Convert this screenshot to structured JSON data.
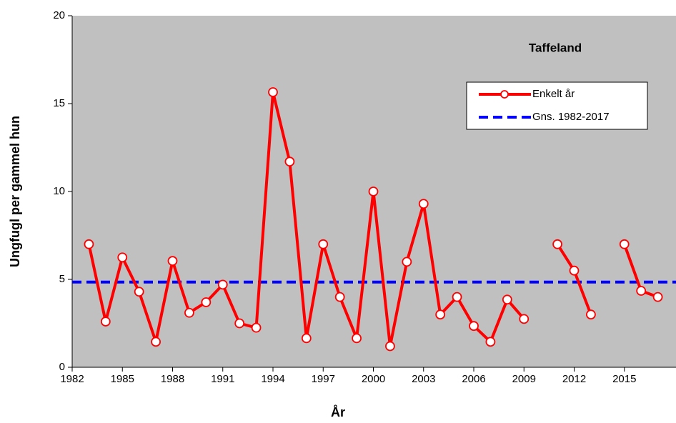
{
  "chart_data": {
    "type": "line",
    "title": "Taffeland",
    "x_label": "År",
    "y_label": "Ungfugl per gammel hun",
    "x": [
      1983,
      1984,
      1985,
      1986,
      1987,
      1988,
      1989,
      1990,
      1991,
      1992,
      1993,
      1994,
      1995,
      1996,
      1997,
      1998,
      1999,
      2000,
      2001,
      2002,
      2003,
      2004,
      2005,
      2006,
      2007,
      2008,
      2009,
      2010,
      2011,
      2012,
      2013,
      2014,
      2015,
      2016,
      2017
    ],
    "series": [
      {
        "name": "Enkelt år",
        "color": "#ff0000",
        "marker": "circle",
        "values": [
          7.0,
          2.6,
          6.25,
          4.3,
          1.45,
          6.05,
          3.1,
          3.7,
          4.7,
          2.5,
          2.25,
          15.65,
          11.7,
          1.65,
          7.0,
          4.0,
          1.65,
          10.0,
          1.2,
          6.0,
          9.3,
          3.0,
          4.0,
          2.35,
          1.45,
          3.85,
          2.75,
          null,
          7.0,
          5.5,
          3.0,
          null,
          7.0,
          4.35,
          4.0
        ]
      }
    ],
    "reference_line": {
      "name": "Gns. 1982-2017",
      "color": "#0000ff",
      "value": 4.85,
      "dashed": true
    },
    "xlim": [
      1982,
      2018
    ],
    "xticks": [
      1982,
      1985,
      1988,
      1991,
      1994,
      1997,
      2000,
      2003,
      2006,
      2009,
      2012,
      2015
    ],
    "ylim": [
      0,
      20
    ],
    "yticks": [
      0,
      5,
      10,
      15,
      20
    ],
    "plot_background": "#c0c0c0",
    "legend": "upper right"
  }
}
